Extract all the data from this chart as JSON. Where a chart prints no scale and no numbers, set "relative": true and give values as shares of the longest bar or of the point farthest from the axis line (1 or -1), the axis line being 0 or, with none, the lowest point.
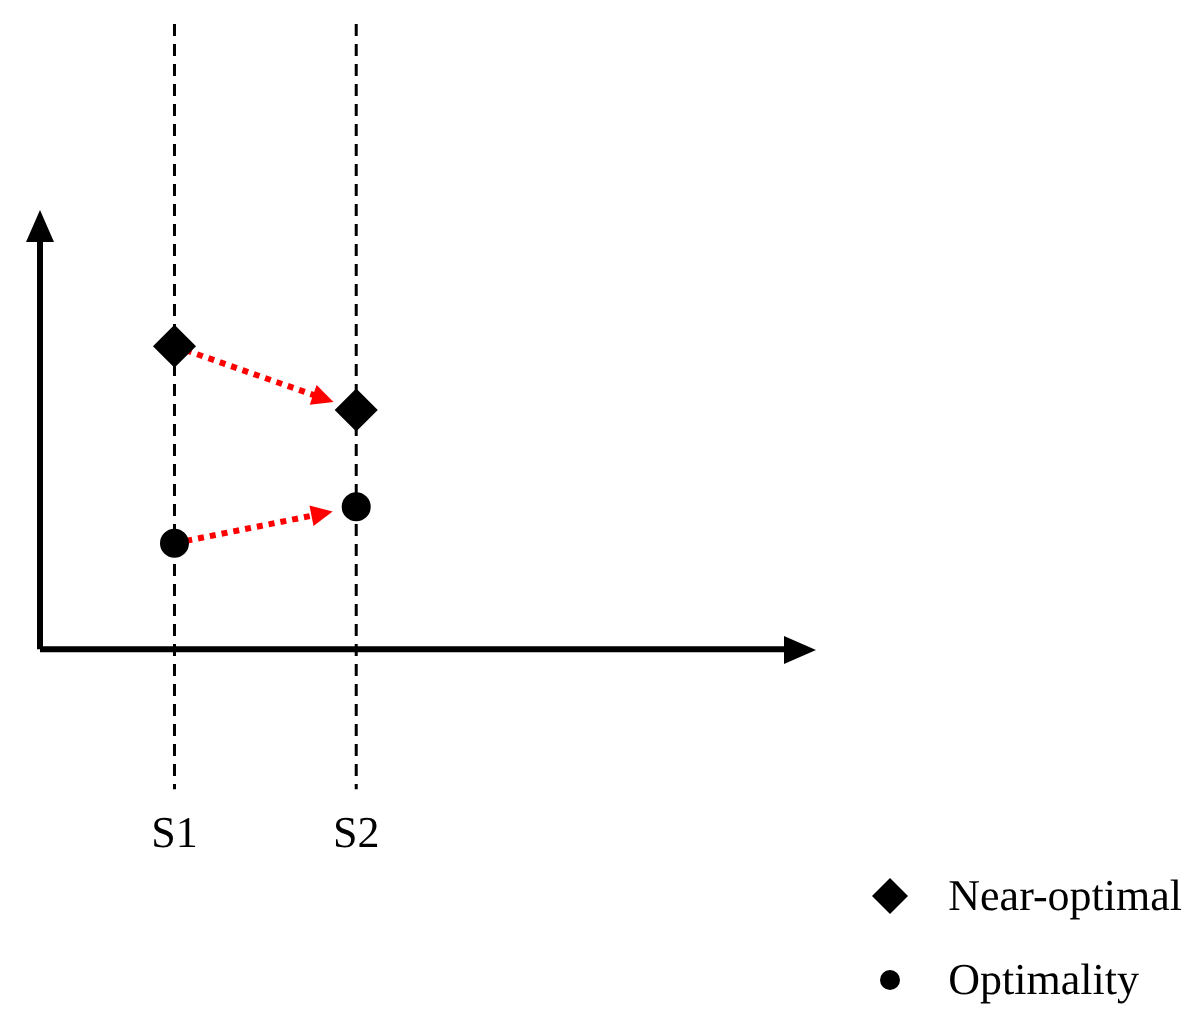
{
  "chart_data": {
    "type": "scatter",
    "categories": [
      "S1",
      "S2"
    ],
    "relative": true,
    "grid": "x",
    "legend": "bottom right",
    "series": [
      {
        "name": "Near-optimal",
        "color": "#000000",
        "marker": "diamond",
        "values": [
          1,
          0.79
        ]
      },
      {
        "name": "Optimality",
        "color": "#000000",
        "marker": "circle",
        "values": [
          0.35,
          0.47
        ]
      }
    ]
  }
}
